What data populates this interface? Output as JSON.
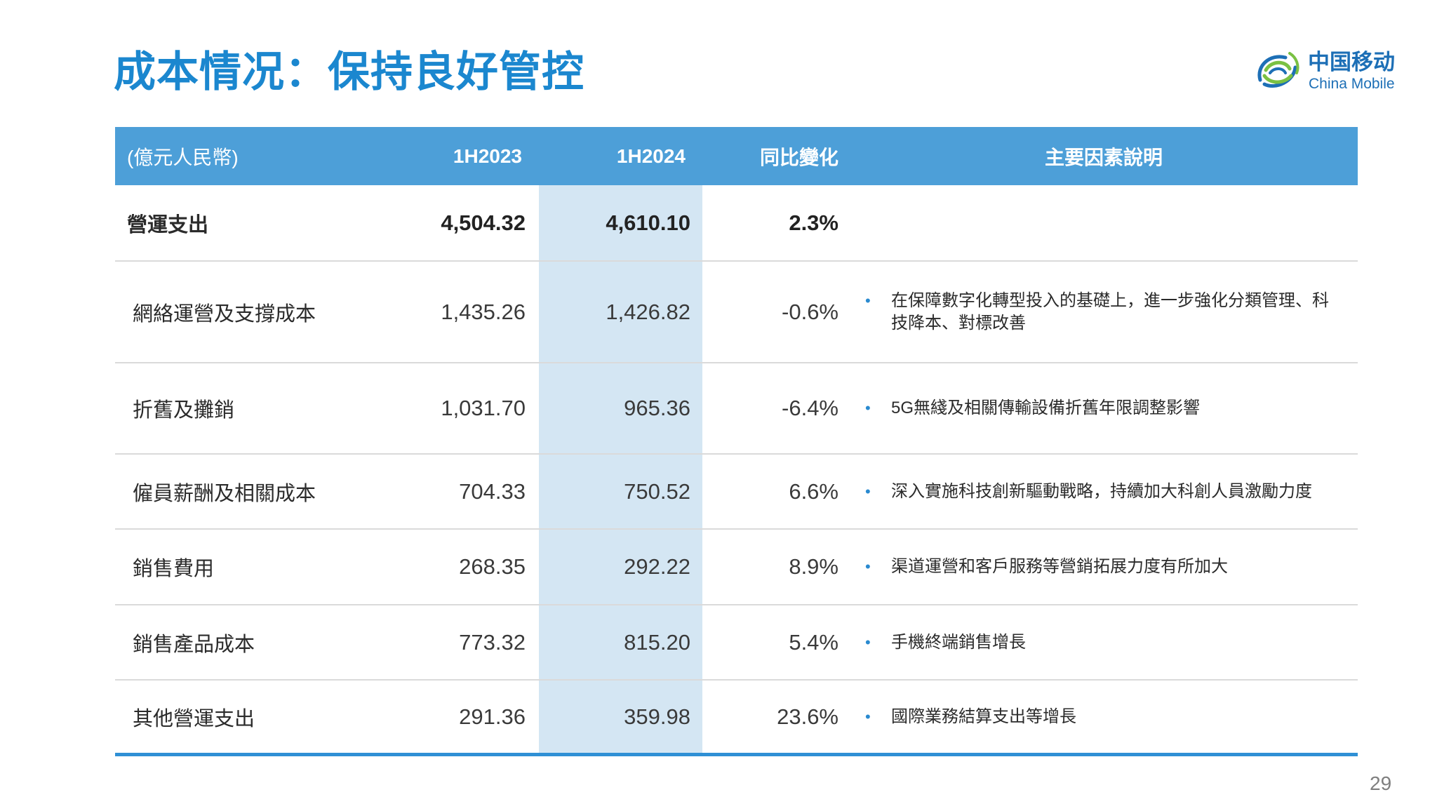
{
  "title": "成本情况：保持良好管控",
  "logo": {
    "icon": "china-mobile-logo-icon",
    "name_cn": "中国移动",
    "name_en": "China Mobile"
  },
  "table": {
    "header": {
      "unit": "(億元人民幣)",
      "period_prev": "1H2023",
      "period_curr": "1H2024",
      "yoy_change": "同比變化",
      "key_factors": "主要因素說明"
    },
    "rows": [
      {
        "item": "營運支出",
        "prev": "4,504.32",
        "curr": "4,610.10",
        "change": "2.3%"
      },
      {
        "item": "網絡運營及支撐成本",
        "prev": "1,435.26",
        "curr": "1,426.82",
        "change": "-0.6%",
        "factor": "在保障數字化轉型投入的基礎上，進一步強化分類管理、科技降本、對標改善"
      },
      {
        "item": "折舊及攤銷",
        "prev": "1,031.70",
        "curr": "965.36",
        "change": "-6.4%",
        "factor": "5G無綫及相關傳輸設備折舊年限調整影響"
      },
      {
        "item": "僱員薪酬及相關成本",
        "prev": "704.33",
        "curr": "750.52",
        "change": "6.6%",
        "factor": "深入實施科技創新驅動戰略，持續加大科創人員激勵力度"
      },
      {
        "item": "銷售費用",
        "prev": "268.35",
        "curr": "292.22",
        "change": "8.9%",
        "factor": "渠道運營和客戶服務等營銷拓展力度有所加大"
      },
      {
        "item": "銷售產品成本",
        "prev": "773.32",
        "curr": "815.20",
        "change": "5.4%",
        "factor": "手機終端銷售增長"
      },
      {
        "item": "其他營運支出",
        "prev": "291.36",
        "curr": "359.98",
        "change": "23.6%",
        "factor": "國際業務結算支出等增長"
      }
    ]
  },
  "page_number": "29",
  "colors": {
    "title": "#1b87cf",
    "header_bg": "#4d9fd8",
    "highlight_column": "#d4e6f3",
    "bottom_rule": "#2f90d5",
    "bullet": "#2a8ad0",
    "logo_blue": "#1d6fb6",
    "logo_green": "#7ac143"
  }
}
